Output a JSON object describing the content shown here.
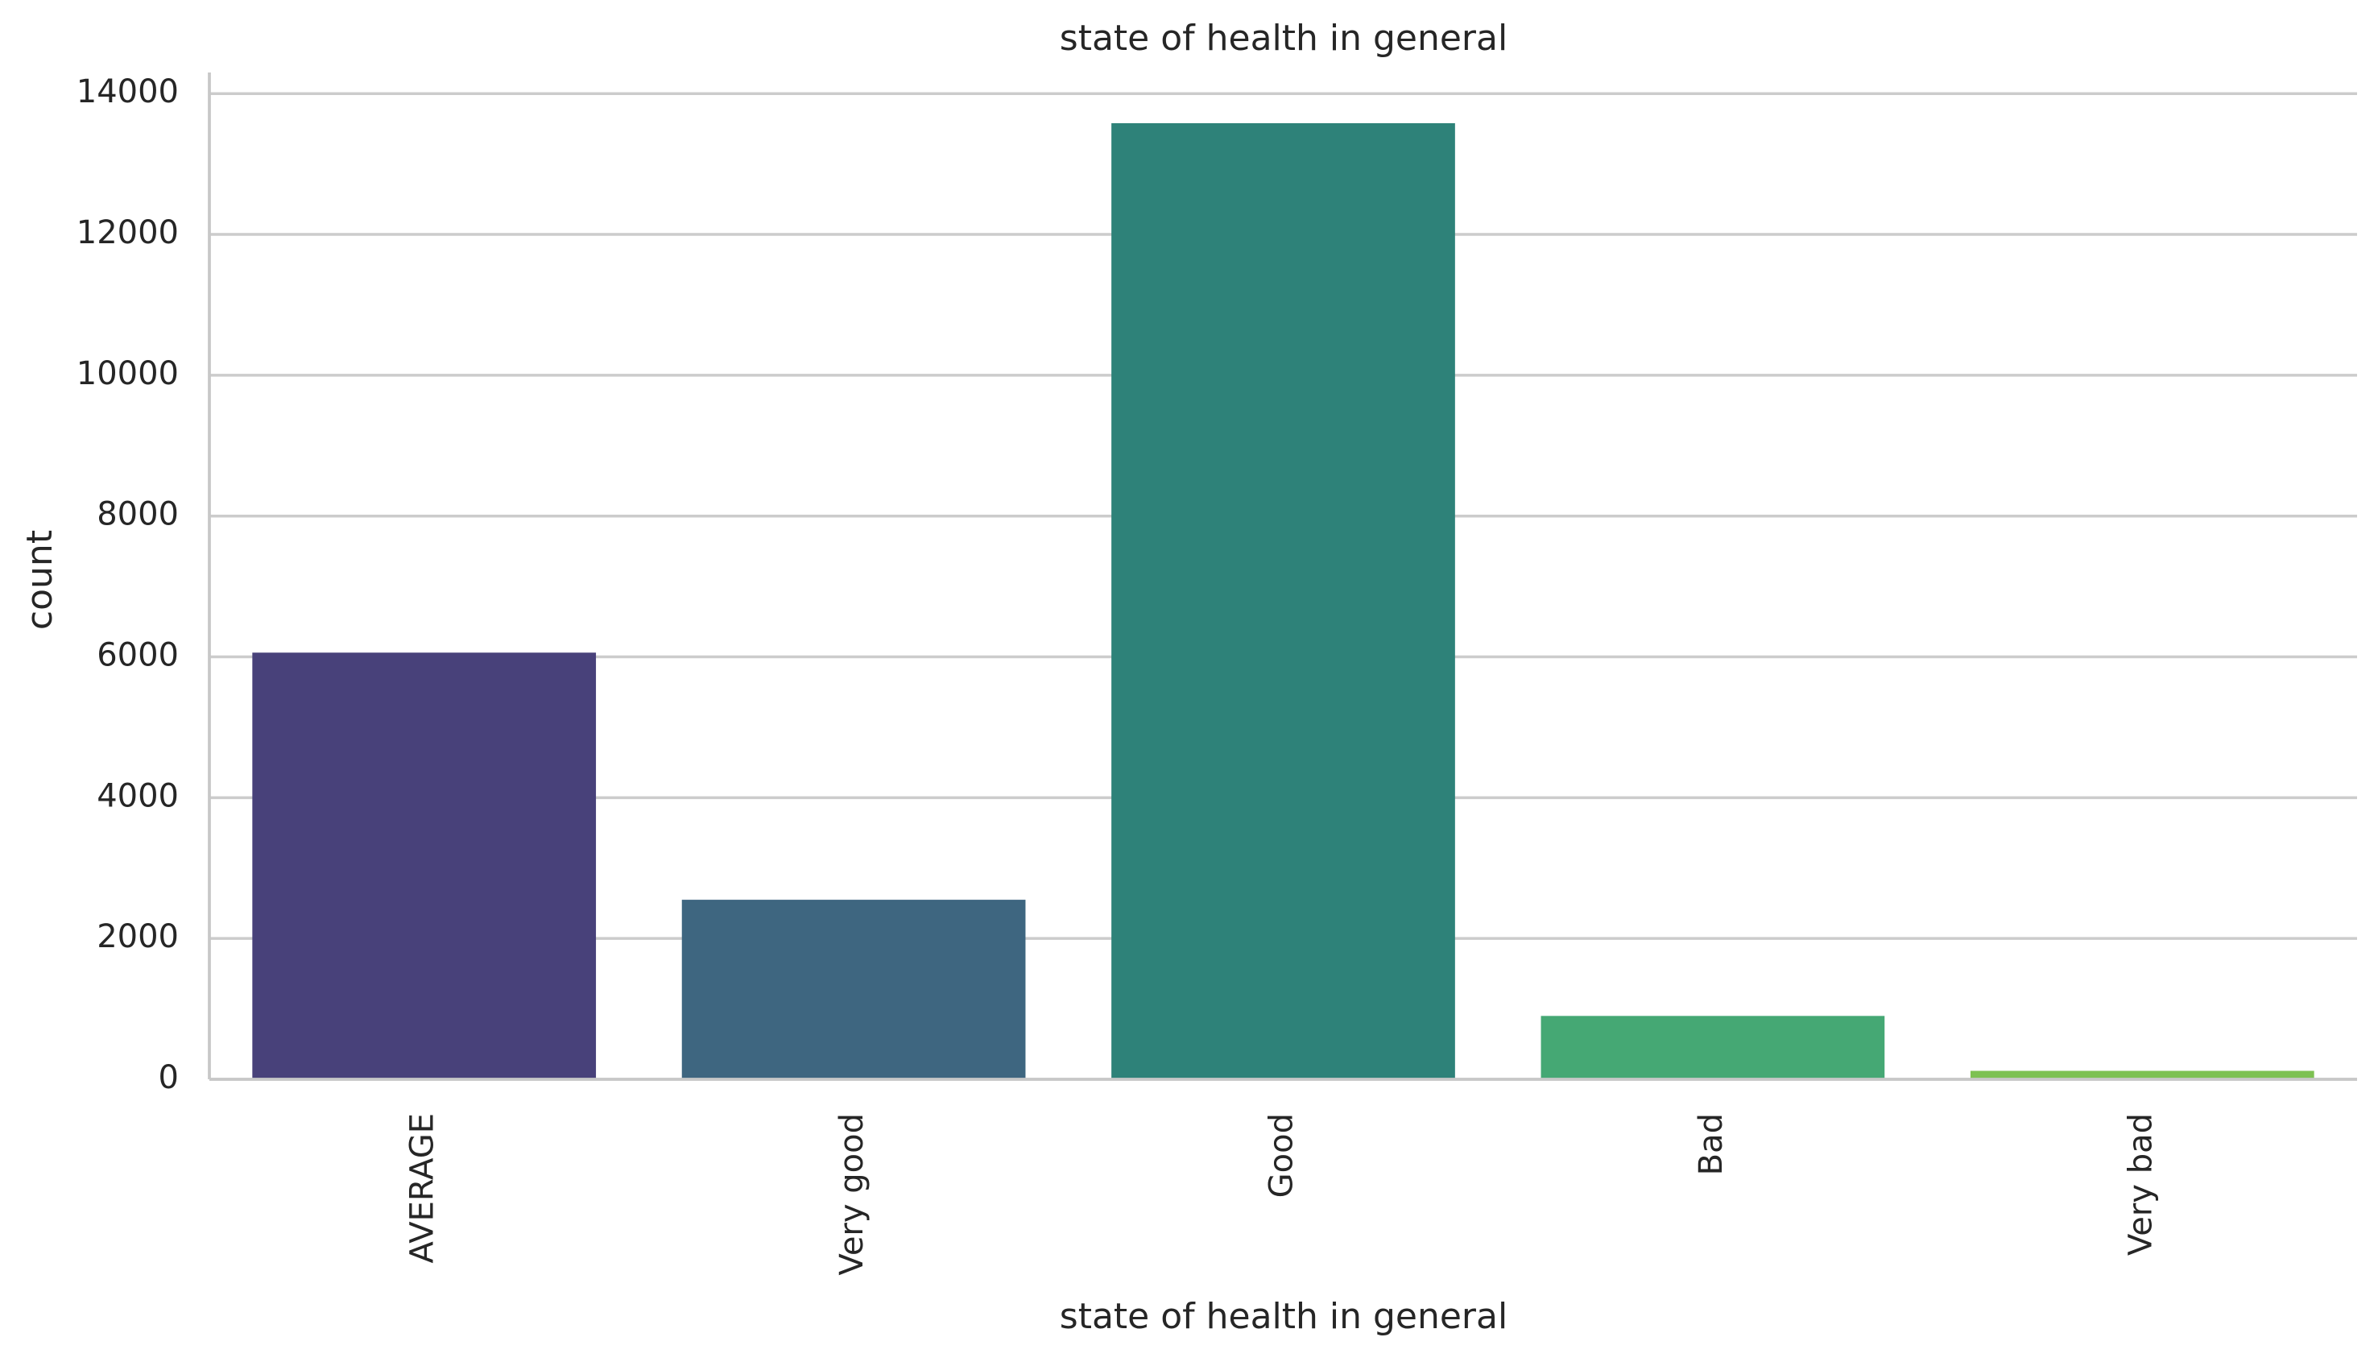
{
  "chart_data": {
    "type": "bar",
    "title": "state of health in general",
    "xlabel": "state of health in general",
    "ylabel": "count",
    "categories": [
      "AVERAGE",
      "Very good",
      "Good",
      "Bad",
      "Very bad"
    ],
    "values": [
      6060,
      2550,
      13580,
      900,
      120
    ],
    "colors": [
      "#48417a",
      "#3e6680",
      "#2e8279",
      "#45a874",
      "#7dc152"
    ],
    "ylim": [
      0,
      14300
    ],
    "yticks": [
      0,
      2000,
      4000,
      6000,
      8000,
      10000,
      12000,
      14000
    ],
    "ytick_labels": [
      "0",
      "2000",
      "4000",
      "6000",
      "8000",
      "10000",
      "12000",
      "14000"
    ],
    "grid": "horizontal",
    "legend": "none"
  }
}
